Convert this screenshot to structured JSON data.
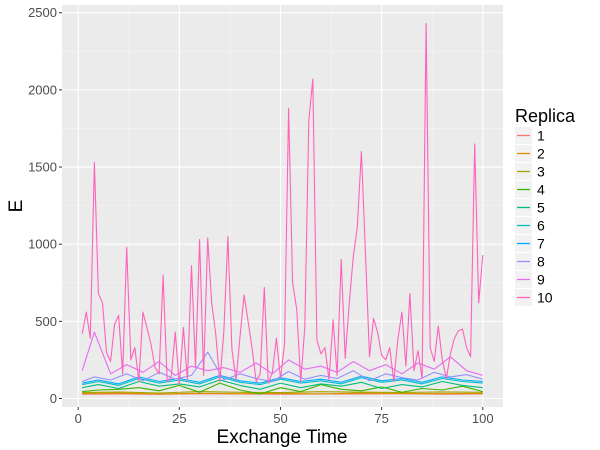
{
  "chart_data": {
    "type": "line",
    "title": "",
    "xlabel": "Exchange Time",
    "ylabel": "E",
    "xlim": [
      -4,
      105
    ],
    "ylim": [
      -55,
      2550
    ],
    "xticks": [
      0,
      25,
      50,
      75,
      100
    ],
    "yticks": [
      0,
      500,
      1000,
      1500,
      2000,
      2500
    ],
    "grid": true,
    "legend": {
      "title": "Replica",
      "position": "right"
    },
    "series": [
      {
        "name": "1",
        "color": "#F8766D",
        "x": [
          1,
          10,
          20,
          30,
          40,
          50,
          60,
          70,
          80,
          90,
          100
        ],
        "values": [
          28,
          30,
          27,
          31,
          29,
          28,
          30,
          29,
          31,
          28,
          30
        ]
      },
      {
        "name": "2",
        "color": "#D89000",
        "x": [
          1,
          10,
          20,
          30,
          40,
          50,
          60,
          70,
          80,
          90,
          100
        ],
        "values": [
          32,
          35,
          30,
          34,
          31,
          33,
          30,
          35,
          32,
          31,
          33
        ]
      },
      {
        "name": "3",
        "color": "#A3A500",
        "x": [
          1,
          10,
          20,
          30,
          40,
          50,
          60,
          70,
          80,
          90,
          100
        ],
        "values": [
          38,
          42,
          36,
          45,
          40,
          38,
          44,
          41,
          39,
          43,
          40
        ]
      },
      {
        "name": "4",
        "color": "#39B600",
        "x": [
          1,
          5,
          10,
          15,
          20,
          25,
          30,
          35,
          40,
          45,
          50,
          55,
          60,
          65,
          70,
          75,
          80,
          85,
          90,
          95,
          100
        ],
        "values": [
          45,
          55,
          60,
          70,
          50,
          85,
          40,
          100,
          55,
          30,
          70,
          45,
          90,
          60,
          50,
          75,
          40,
          65,
          55,
          80,
          45
        ]
      },
      {
        "name": "5",
        "color": "#00BF7D",
        "x": [
          1,
          5,
          10,
          15,
          20,
          25,
          30,
          35,
          40,
          45,
          50,
          55,
          60,
          65,
          70,
          75,
          80,
          85,
          90,
          95,
          100
        ],
        "values": [
          70,
          90,
          65,
          110,
          80,
          95,
          75,
          120,
          85,
          60,
          100,
          70,
          95,
          80,
          105,
          65,
          90,
          75,
          110,
          85,
          70
        ]
      },
      {
        "name": "6",
        "color": "#00BFC4",
        "x": [
          1,
          5,
          10,
          15,
          20,
          25,
          30,
          35,
          40,
          45,
          50,
          55,
          60,
          65,
          70,
          75,
          80,
          85,
          90,
          95,
          100
        ],
        "values": [
          90,
          110,
          85,
          130,
          100,
          120,
          95,
          140,
          105,
          90,
          125,
          100,
          115,
          95,
          135,
          105,
          120,
          95,
          130,
          110,
          100
        ]
      },
      {
        "name": "7",
        "color": "#00A9FF",
        "x": [
          1,
          5,
          10,
          15,
          20,
          25,
          30,
          35,
          40,
          45,
          50,
          55,
          60,
          65,
          70,
          75,
          80,
          85,
          90,
          95,
          100
        ],
        "values": [
          100,
          120,
          95,
          140,
          110,
          130,
          105,
          150,
          115,
          100,
          135,
          110,
          125,
          105,
          145,
          115,
          130,
          105,
          140,
          120,
          110
        ]
      },
      {
        "name": "8",
        "color": "#9590FF",
        "x": [
          1,
          4,
          8,
          12,
          16,
          20,
          24,
          28,
          32,
          36,
          40,
          44,
          48,
          52,
          56,
          60,
          64,
          68,
          72,
          76,
          80,
          84,
          88,
          92,
          96,
          100
        ],
        "values": [
          110,
          140,
          120,
          160,
          115,
          170,
          125,
          150,
          300,
          120,
          160,
          130,
          110,
          175,
          125,
          150,
          130,
          180,
          115,
          160,
          135,
          120,
          170,
          140,
          155,
          125
        ]
      },
      {
        "name": "9",
        "color": "#E76BF3",
        "x": [
          1,
          4,
          8,
          12,
          16,
          20,
          24,
          28,
          32,
          36,
          40,
          44,
          48,
          52,
          56,
          60,
          64,
          68,
          72,
          76,
          80,
          84,
          88,
          92,
          96,
          100
        ],
        "values": [
          180,
          430,
          160,
          220,
          170,
          240,
          150,
          210,
          180,
          200,
          170,
          230,
          160,
          250,
          190,
          210,
          170,
          240,
          180,
          220,
          160,
          230,
          190,
          270,
          180,
          150
        ]
      },
      {
        "name": "10",
        "color": "#FF62BC",
        "x": [
          1,
          2,
          3,
          4,
          5,
          6,
          7,
          8,
          9,
          10,
          11,
          12,
          13,
          14,
          15,
          16,
          17,
          18,
          19,
          20,
          21,
          22,
          23,
          24,
          25,
          26,
          27,
          28,
          29,
          30,
          31,
          32,
          33,
          34,
          35,
          36,
          37,
          38,
          39,
          40,
          41,
          42,
          43,
          44,
          45,
          46,
          47,
          48,
          49,
          50,
          51,
          52,
          53,
          54,
          55,
          56,
          57,
          58,
          59,
          60,
          61,
          62,
          63,
          64,
          65,
          66,
          67,
          68,
          69,
          70,
          71,
          72,
          73,
          74,
          75,
          76,
          77,
          78,
          79,
          80,
          81,
          82,
          83,
          84,
          85,
          86,
          87,
          88,
          89,
          90,
          91,
          92,
          93,
          94,
          95,
          96,
          97,
          98,
          99,
          100
        ],
        "values": [
          420,
          560,
          390,
          1530,
          680,
          620,
          300,
          240,
          480,
          540,
          160,
          980,
          250,
          330,
          110,
          560,
          460,
          350,
          200,
          160,
          800,
          110,
          140,
          430,
          90,
          460,
          120,
          860,
          200,
          1030,
          150,
          1040,
          620,
          420,
          110,
          430,
          1050,
          320,
          120,
          400,
          670,
          500,
          320,
          110,
          160,
          720,
          100,
          170,
          390,
          130,
          350,
          1880,
          750,
          580,
          110,
          460,
          1800,
          2070,
          380,
          290,
          330,
          120,
          510,
          150,
          900,
          260,
          620,
          920,
          1110,
          1600,
          950,
          270,
          520,
          430,
          280,
          250,
          330,
          110,
          380,
          560,
          210,
          680,
          180,
          310,
          130,
          2430,
          330,
          240,
          470,
          250,
          130,
          290,
          390,
          440,
          450,
          330,
          270,
          1650,
          620,
          930
        ]
      }
    ]
  }
}
